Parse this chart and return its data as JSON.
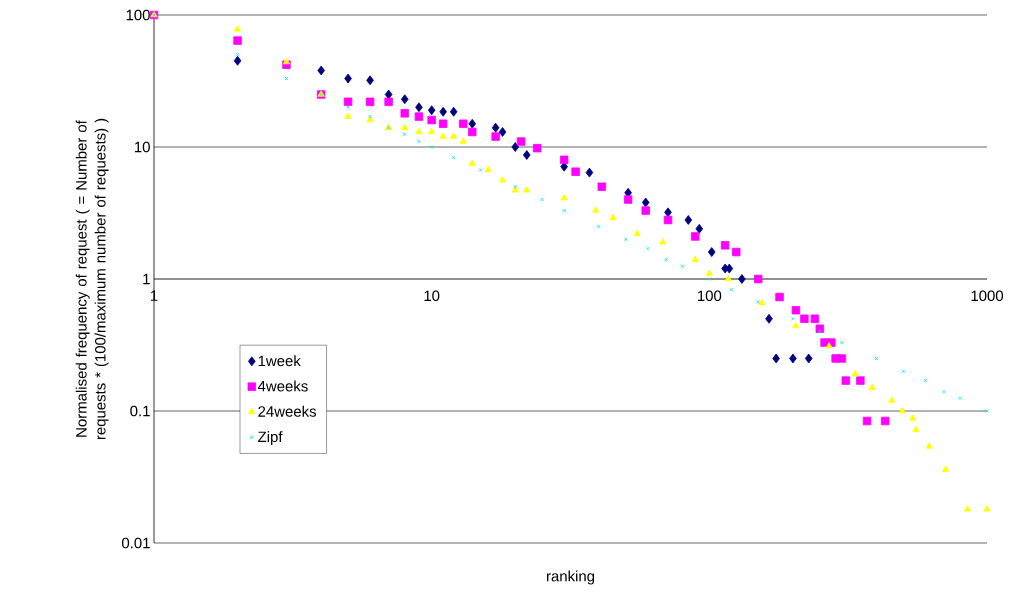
{
  "chart_data": {
    "type": "scatter",
    "xlabel": "ranking",
    "ylabel": "Normalised frequency of request ( = Number of requests * (100/maximum number of requests) )",
    "log": "xy",
    "xlim": [
      1,
      1000
    ],
    "ylim": [
      0.01,
      100
    ],
    "xticks": [
      1,
      10,
      100,
      1000
    ],
    "yticks": [
      0.01,
      0.1,
      1,
      10,
      100
    ],
    "grid": "y",
    "legend": "bottom left",
    "series": [
      {
        "name": "1week",
        "color": "#000080",
        "marker": "diamond",
        "x": [
          2,
          4,
          5,
          6,
          7,
          8,
          9,
          10,
          11,
          12,
          14,
          17,
          18,
          20,
          22,
          30,
          37,
          51,
          59,
          71,
          84,
          92,
          102,
          114,
          118,
          131,
          164,
          174,
          200,
          228
        ],
        "values": [
          45,
          38,
          33,
          32,
          25,
          23,
          20,
          19,
          18.5,
          18.5,
          15,
          14,
          13,
          10,
          8.7,
          7.1,
          6.4,
          4.5,
          3.8,
          3.2,
          2.8,
          2.4,
          1.6,
          1.2,
          1.2,
          1,
          0.5,
          0.25,
          0.25,
          0.25
        ]
      },
      {
        "name": "4weeks",
        "color": "#ff00ff",
        "marker": "square",
        "x": [
          1,
          2,
          3,
          4,
          5,
          6,
          7,
          8,
          9,
          10,
          11,
          13,
          14,
          17,
          21,
          24,
          30,
          33,
          41,
          51,
          59,
          71,
          89,
          114,
          125,
          150,
          179,
          205,
          220,
          240,
          250,
          260,
          275,
          285,
          300,
          310,
          350,
          370,
          430
        ],
        "values": [
          100,
          64,
          42,
          25,
          22,
          22,
          22,
          18,
          17,
          16,
          15,
          15,
          13,
          12,
          11,
          9.8,
          8,
          6.5,
          5,
          4,
          3.3,
          2.8,
          2.1,
          1.8,
          1.6,
          1,
          0.73,
          0.58,
          0.5,
          0.5,
          0.42,
          0.33,
          0.33,
          0.25,
          0.25,
          0.17,
          0.17,
          0.084,
          0.084
        ]
      },
      {
        "name": "24weeks",
        "color": "#ffff00",
        "marker": "triangle",
        "x": [
          1,
          2,
          3,
          4,
          5,
          6,
          7,
          8,
          9,
          10,
          11,
          12,
          13,
          14,
          16,
          18,
          20,
          22,
          30,
          39,
          45,
          55,
          68,
          89,
          100,
          117,
          155,
          205,
          270,
          336,
          386,
          455,
          495,
          540,
          555,
          620,
          710,
          850,
          1000
        ],
        "values": [
          100,
          78,
          44,
          25,
          17,
          16,
          14,
          14,
          13,
          13,
          12,
          12,
          11,
          7.5,
          6.7,
          5.6,
          4.7,
          4.7,
          4.1,
          3.3,
          2.9,
          2.2,
          1.9,
          1.4,
          1.1,
          1,
          0.66,
          0.44,
          0.31,
          0.19,
          0.15,
          0.12,
          0.1,
          0.088,
          0.072,
          0.054,
          0.036,
          0.018,
          0.018
        ]
      },
      {
        "name": "Zipf",
        "color": "#00e5ee",
        "marker": "cross",
        "x": [
          1,
          2,
          3,
          4,
          5,
          6,
          7,
          8,
          9,
          10,
          12,
          15,
          20,
          25,
          30,
          40,
          50,
          60,
          70,
          80,
          100,
          120,
          150,
          200,
          250,
          300,
          400,
          500,
          600,
          700,
          800,
          1000
        ],
        "values": [
          100,
          50,
          33,
          25,
          20,
          17,
          14,
          12.5,
          11,
          10,
          8.3,
          6.7,
          5,
          4,
          3.3,
          2.5,
          2,
          1.7,
          1.4,
          1.25,
          1,
          0.83,
          0.67,
          0.5,
          0.4,
          0.33,
          0.25,
          0.2,
          0.17,
          0.14,
          0.125,
          0.1
        ]
      }
    ]
  }
}
